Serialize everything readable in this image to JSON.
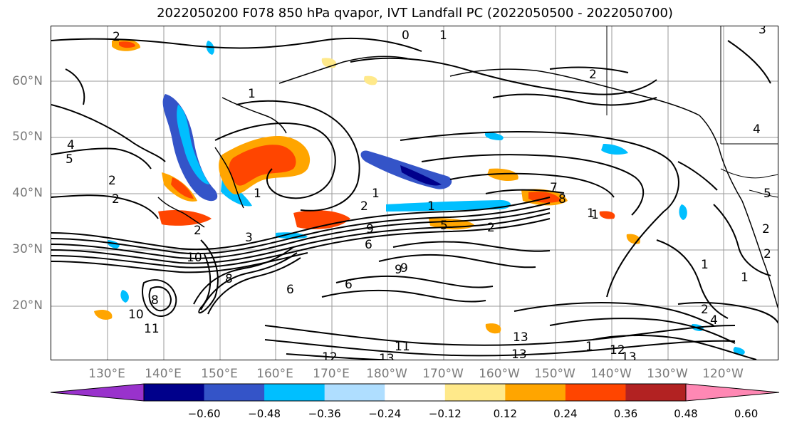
{
  "title": "2022050200 F078 850 hPa qvapor, IVT Landfall PC (2022050500 - 2022050700)",
  "lat_labels": [
    "60°N",
    "50°N",
    "40°N",
    "30°N",
    "20°N"
  ],
  "lon_labels": [
    "130°E",
    "140°E",
    "150°E",
    "160°E",
    "170°E",
    "180°W",
    "170°W",
    "160°W",
    "150°W",
    "140°W",
    "130°W",
    "120°W"
  ],
  "colorbar": {
    "colors": [
      "#9932cc",
      "#00008b",
      "#3454c8",
      "#00bfff",
      "#afdeff",
      "#ffffff",
      "#ffe98a",
      "#ffa500",
      "#ff4500",
      "#b22222",
      "#ff88b4"
    ],
    "ticks": [
      "−0.60",
      "−0.48",
      "−0.36",
      "−0.24",
      "−0.12",
      "0.12",
      "0.24",
      "0.36",
      "0.48",
      "0.60"
    ]
  },
  "contour_labels": [
    "2",
    "0",
    "1",
    "1",
    "2",
    "3",
    "4",
    "1",
    "1",
    "2",
    "2",
    "1",
    "1",
    "2",
    "4",
    "5",
    "2",
    "6",
    "7",
    "8",
    "9",
    "10",
    "6",
    "8",
    "9",
    "8",
    "10",
    "11",
    "12",
    "13",
    "11",
    "13",
    "13",
    "12",
    "13",
    "1",
    "2",
    "4",
    "2",
    "1",
    "5",
    "2",
    "1",
    "1",
    "3",
    "9",
    "6",
    "5",
    "2"
  ]
}
